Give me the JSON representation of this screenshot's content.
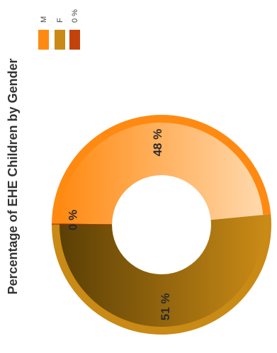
{
  "chart_data": {
    "type": "pie",
    "style": "donut",
    "orientation": "rotated -90 degrees",
    "title": "Percentage of EHE Children by Gender",
    "categories": [
      "M",
      "F",
      "0 %"
    ],
    "values": [
      48,
      51,
      0
    ],
    "value_labels": [
      "48 %",
      "51 %",
      "0 %"
    ],
    "legend_position": "top-right",
    "colors": [
      "#ff8a12",
      "#c98a16",
      "#c4420c"
    ]
  }
}
